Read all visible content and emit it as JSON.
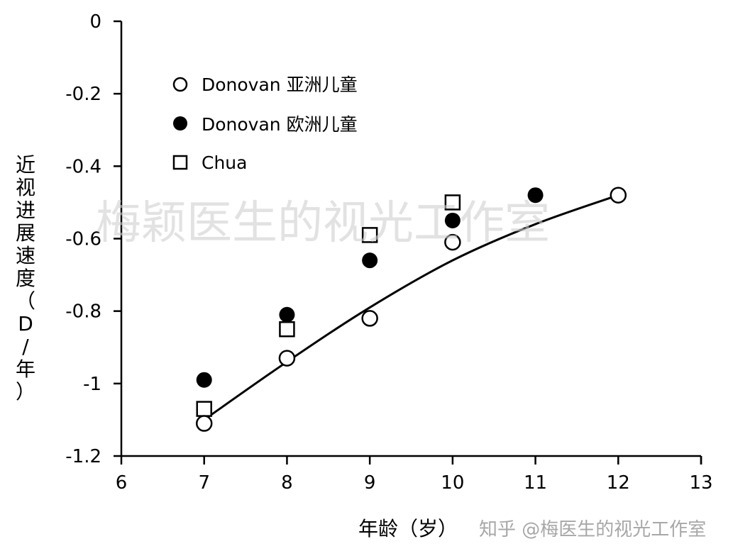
{
  "chart_data": {
    "type": "scatter",
    "xlabel": "年龄（岁）",
    "ylabel": "近视进展速度（D/年）",
    "xlim": [
      6,
      13
    ],
    "ylim": [
      -1.2,
      0
    ],
    "x_ticks": [
      "6",
      "7",
      "8",
      "9",
      "10",
      "11",
      "12",
      "13"
    ],
    "y_ticks": [
      "0",
      "-0.2",
      "-0.4",
      "-0.6",
      "-0.8",
      "-1",
      "-1.2"
    ],
    "legend_position": "top-left",
    "series": [
      {
        "name": "Donovan 亚洲儿童",
        "marker": "open-circle",
        "points": [
          [
            7,
            -1.11
          ],
          [
            8,
            -0.93
          ],
          [
            9,
            -0.82
          ],
          [
            10,
            -0.61
          ],
          [
            12,
            -0.48
          ]
        ]
      },
      {
        "name": "Donovan 欧洲儿童",
        "marker": "filled-circle",
        "points": [
          [
            7,
            -0.99
          ],
          [
            8,
            -0.81
          ],
          [
            9,
            -0.66
          ],
          [
            10,
            -0.55
          ],
          [
            11,
            -0.48
          ]
        ]
      },
      {
        "name": "Chua",
        "marker": "open-square",
        "points": [
          [
            7,
            -1.07
          ],
          [
            8,
            -0.85
          ],
          [
            9,
            -0.59
          ],
          [
            10,
            -0.5
          ]
        ]
      }
    ],
    "trendline": {
      "type": "polynomial-fit",
      "points": [
        [
          7,
          -1.1
        ],
        [
          8,
          -0.94
        ],
        [
          9,
          -0.79
        ],
        [
          10,
          -0.66
        ],
        [
          11,
          -0.56
        ],
        [
          12,
          -0.48
        ]
      ]
    },
    "colors": {
      "marker": "#000000",
      "axis": "#000000"
    }
  },
  "watermark": {
    "center_text": "梅颖医生的视光工作室",
    "corner_text": "知乎 @梅医生的视光工作室"
  }
}
